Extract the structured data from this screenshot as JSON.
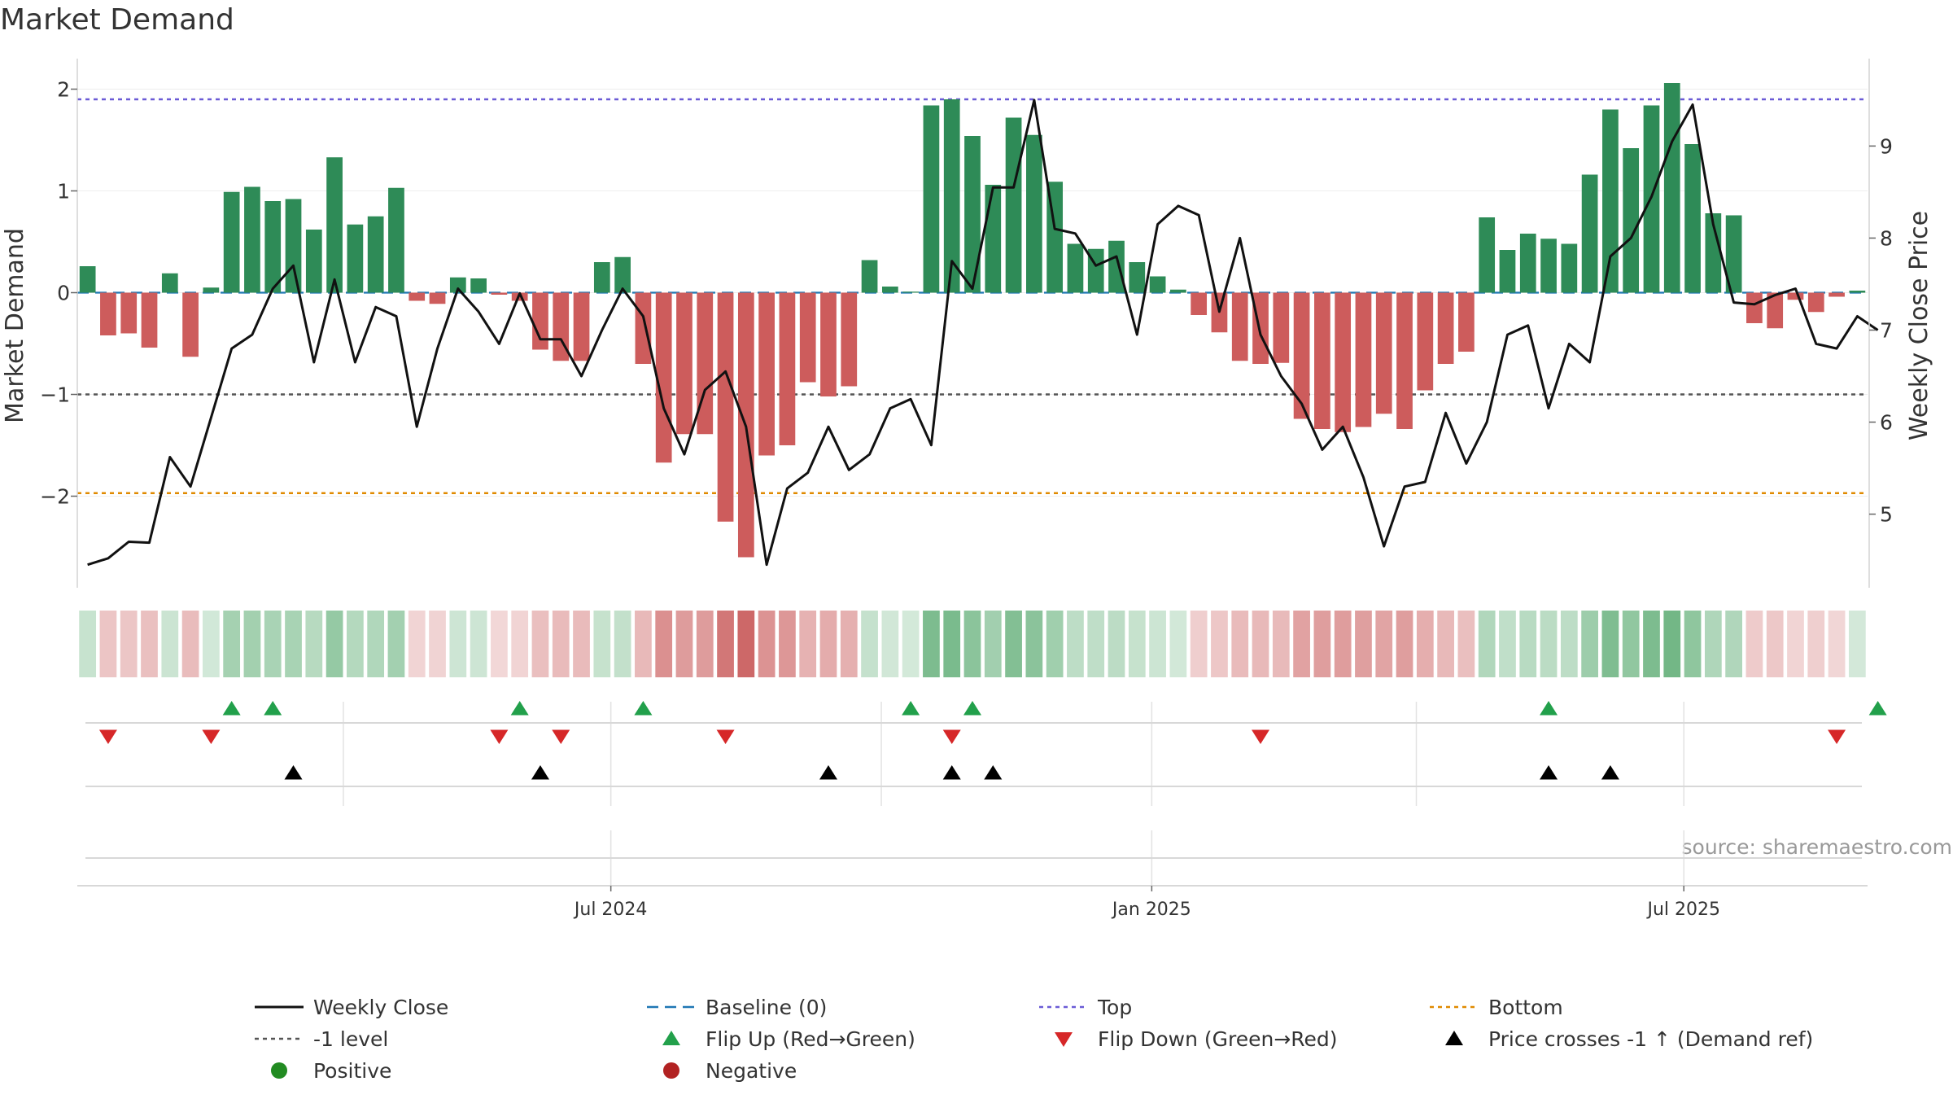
{
  "chart_data": {
    "type": "bar",
    "title": "Market Demand",
    "ylabel_left": "Market Demand",
    "ylabel_right": "Weekly Close Price",
    "source": "source: sharemaestro.com",
    "x_start": "2024-01-05",
    "x_step_days": 7,
    "x_ticks": [
      {
        "date": "2024-07-01",
        "label": "Jul 2024"
      },
      {
        "date": "2025-01-01",
        "label": "Jan 2025"
      },
      {
        "date": "2025-07-01",
        "label": "Jul 2025"
      }
    ],
    "minor_grid_dates": [
      "2024-04-01",
      "2024-10-01",
      "2025-04-01"
    ],
    "y_left": {
      "lim": [
        -2.9,
        2.3
      ],
      "ticks": [
        2,
        1,
        0,
        -1,
        -2
      ],
      "tick_labels": [
        "2",
        "1",
        "0",
        "−1",
        "−2"
      ]
    },
    "y_right": {
      "lim": [
        4.2,
        9.95
      ],
      "ticks": [
        9,
        8,
        7,
        6,
        5
      ],
      "tick_labels": [
        "9",
        "8",
        "7",
        "6",
        "5"
      ]
    },
    "reference_lines": [
      {
        "name": "Baseline (0)",
        "value": 0,
        "color": "#1f77b4",
        "style": "dashed"
      },
      {
        "name": "Top",
        "value": 1.9,
        "color": "#6b5bd6",
        "style": "dotted"
      },
      {
        "name": "-1 level",
        "value": -1.0,
        "color": "#555555",
        "style": "dotted"
      },
      {
        "name": "Bottom",
        "value": -1.97,
        "color": "#e08a00",
        "style": "dotted"
      }
    ],
    "series": [
      {
        "name": "Market Demand",
        "kind": "bar",
        "values": [
          0.26,
          -0.42,
          -0.4,
          -0.54,
          0.19,
          -0.63,
          0.05,
          0.99,
          1.04,
          0.9,
          0.92,
          0.62,
          1.33,
          0.67,
          0.75,
          1.03,
          -0.08,
          -0.11,
          0.15,
          0.14,
          -0.02,
          -0.08,
          -0.56,
          -0.67,
          -0.67,
          0.3,
          0.35,
          -0.7,
          -1.67,
          -1.39,
          -1.39,
          -2.25,
          -2.6,
          -1.6,
          -1.5,
          -0.88,
          -1.02,
          -0.92,
          0.32,
          0.06,
          0.01,
          1.84,
          1.9,
          1.54,
          1.06,
          1.72,
          1.55,
          1.09,
          0.48,
          0.43,
          0.51,
          0.3,
          0.16,
          0.03,
          -0.22,
          -0.39,
          -0.67,
          -0.7,
          -0.69,
          -1.24,
          -1.34,
          -1.37,
          -1.32,
          -1.19,
          -1.34,
          -0.96,
          -0.7,
          -0.58,
          0.74,
          0.42,
          0.58,
          0.53,
          0.48,
          1.16,
          1.8,
          1.42,
          1.84,
          2.06,
          1.46,
          0.78,
          0.76,
          -0.3,
          -0.35,
          -0.07,
          -0.19,
          -0.04,
          0.02
        ]
      },
      {
        "name": "Weekly Close",
        "kind": "line",
        "values": [
          4.45,
          4.52,
          4.7,
          4.69,
          5.62,
          5.3,
          6.05,
          6.8,
          6.95,
          7.45,
          7.7,
          6.65,
          7.55,
          6.65,
          7.25,
          7.15,
          5.95,
          6.8,
          7.45,
          7.2,
          6.85,
          7.4,
          6.9,
          6.9,
          6.5,
          7.0,
          7.45,
          7.15,
          6.15,
          5.65,
          6.35,
          6.55,
          5.95,
          4.45,
          5.28,
          5.45,
          5.95,
          5.48,
          5.65,
          6.15,
          6.25,
          5.75,
          7.75,
          7.45,
          8.55,
          8.55,
          9.5,
          8.1,
          8.05,
          7.7,
          7.8,
          6.95,
          8.15,
          8.35,
          8.25,
          7.2,
          8.0,
          6.95,
          6.5,
          6.2,
          5.7,
          5.95,
          5.4,
          4.65,
          5.3,
          5.35,
          6.1,
          5.55,
          6.0,
          6.95,
          7.05,
          6.15,
          6.85,
          6.65,
          7.8,
          8.0,
          8.45,
          9.05,
          9.45,
          8.15,
          7.3,
          7.28,
          7.38,
          7.45,
          6.85,
          6.8,
          7.15,
          7.0
        ]
      }
    ],
    "flip_up_dates": [
      "2024-02-23",
      "2024-03-08",
      "2024-05-31",
      "2024-07-12",
      "2024-10-11",
      "2024-11-01",
      "2025-05-16",
      "2025-09-05"
    ],
    "flip_down_dates": [
      "2024-01-12",
      "2024-02-16",
      "2024-05-24",
      "2024-06-14",
      "2024-08-09",
      "2024-10-25",
      "2025-02-07",
      "2025-08-22"
    ],
    "price_cross_dates": [
      "2024-03-15",
      "2024-06-07",
      "2024-09-13",
      "2024-10-25",
      "2024-11-08",
      "2025-05-16",
      "2025-06-06"
    ],
    "colors": {
      "positive": "#2e8b57",
      "negative": "#cd5c5c",
      "line": "#111111",
      "flip_up": "#22a04b",
      "flip_down": "#d62728",
      "cross": "#000000",
      "legend_positive": "#228b22",
      "legend_negative": "#b22222"
    },
    "legend": {
      "placement": "bottom",
      "items": [
        {
          "label": "Weekly Close",
          "symbol": "line-solid",
          "color": "#111111"
        },
        {
          "label": "Baseline (0)",
          "symbol": "line-dashed",
          "color": "#1f77b4"
        },
        {
          "label": "Top",
          "symbol": "line-dotted",
          "color": "#6b5bd6"
        },
        {
          "label": "Bottom",
          "symbol": "line-dotted",
          "color": "#e08a00"
        },
        {
          "label": "-1 level",
          "symbol": "line-dotted",
          "color": "#555555"
        },
        {
          "label": "Flip Up (Red→Green)",
          "symbol": "triangle-up",
          "color": "#22a04b"
        },
        {
          "label": "Flip Down (Green→Red)",
          "symbol": "triangle-down",
          "color": "#d62728"
        },
        {
          "label": "Price crosses -1 ↑ (Demand ref)",
          "symbol": "triangle-up",
          "color": "#000000"
        },
        {
          "label": "Positive",
          "symbol": "circle",
          "color": "#228b22"
        },
        {
          "label": "Negative",
          "symbol": "circle",
          "color": "#b22222"
        }
      ]
    }
  }
}
